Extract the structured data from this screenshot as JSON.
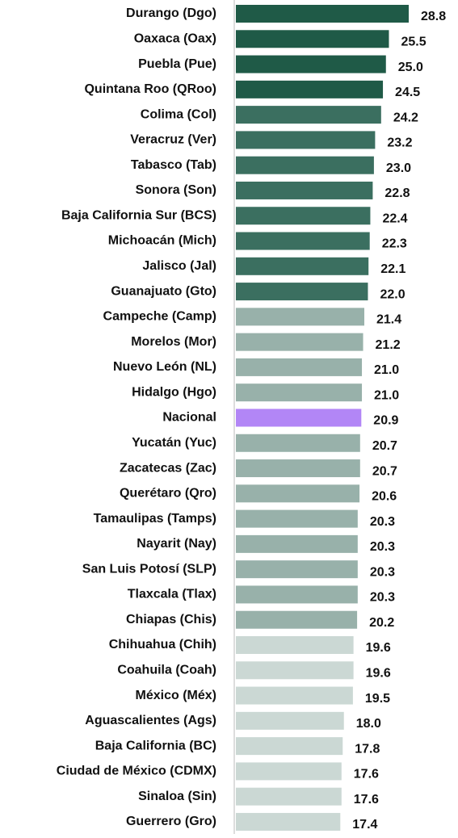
{
  "chart_data": {
    "type": "barh",
    "categories": [
      "Durango (Dgo)",
      "Oaxaca (Oax)",
      "Puebla (Pue)",
      "Quintana Roo (QRoo)",
      "Colima (Col)",
      "Veracruz (Ver)",
      "Tabasco (Tab)",
      "Sonora (Son)",
      "Baja California Sur (BCS)",
      "Michoacán (Mich)",
      "Jalisco (Jal)",
      "Guanajuato (Gto)",
      "Campeche (Camp)",
      "Morelos (Mor)",
      "Nuevo León (NL)",
      "Hidalgo (Hgo)",
      "Nacional",
      "Yucatán (Yuc)",
      "Zacatecas (Zac)",
      "Querétaro (Qro)",
      "Tamaulipas (Tamps)",
      "Nayarit (Nay)",
      "San Luis Potosí (SLP)",
      "Tlaxcala (Tlax)",
      "Chiapas (Chis)",
      "Chihuahua (Chih)",
      "Coahuila (Coah)",
      "México (Méx)",
      "Aguascalientes (Ags)",
      "Baja California (BC)",
      "Ciudad de México (CDMX)",
      "Sinaloa (Sin)",
      "Guerrero (Gro)"
    ],
    "values": [
      28.8,
      25.5,
      25.0,
      24.5,
      24.2,
      23.2,
      23.0,
      22.8,
      22.4,
      22.3,
      22.1,
      22.0,
      21.4,
      21.2,
      21.0,
      21.0,
      20.9,
      20.7,
      20.7,
      20.6,
      20.3,
      20.3,
      20.3,
      20.3,
      20.2,
      19.6,
      19.6,
      19.5,
      18.0,
      17.8,
      17.6,
      17.6,
      17.4
    ],
    "value_labels": [
      "28.8",
      "25.5",
      "25.0",
      "24.5",
      "24.2",
      "23.2",
      "23.0",
      "22.8",
      "22.4",
      "22.3",
      "22.1",
      "22.0",
      "21.4",
      "21.2",
      "21.0",
      "21.0",
      "20.9",
      "20.7",
      "20.7",
      "20.6",
      "20.3",
      "20.3",
      "20.3",
      "20.3",
      "20.2",
      "19.6",
      "19.6",
      "19.5",
      "18.0",
      "17.8",
      "17.6",
      "17.6",
      "17.4"
    ],
    "colors": [
      "#1f5a47",
      "#1f5a47",
      "#1f5a47",
      "#1f5a47",
      "#3b6f60",
      "#3b6f60",
      "#3b6f60",
      "#3b6f60",
      "#3b6f60",
      "#3b6f60",
      "#3b6f60",
      "#3b6f60",
      "#98b1aa",
      "#98b1aa",
      "#98b1aa",
      "#98b1aa",
      "#b286f6",
      "#98b1aa",
      "#98b1aa",
      "#98b1aa",
      "#98b1aa",
      "#98b1aa",
      "#98b1aa",
      "#98b1aa",
      "#98b1aa",
      "#cbd8d4",
      "#cbd8d4",
      "#cbd8d4",
      "#cbd8d4",
      "#cbd8d4",
      "#cbd8d4",
      "#cbd8d4",
      "#cbd8d4"
    ]
  }
}
